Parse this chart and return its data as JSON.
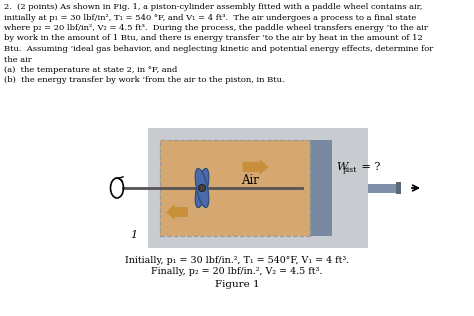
{
  "text_lines": [
    "2.  (2 points) As shown in Fig. 1, a piston-cylinder assembly fitted with a paddle wheel contains air,",
    "initially at p₁ = 30 lbf/in², T₁ = 540 °F, and V₁ = 4 ft³.  The air undergoes a process to a final state",
    "where p₂ = 20 lbf/in², V₂ = 4.5 ft³.  During the process, the paddle wheel transfers energy ’to the air",
    "by work in the amount of 1 Btu, and there is energy transfer ’to the air by heat in the amount of 12",
    "Btu.  Assuming ’ideal gas behavior, and neglecting kinetic and potential energy effects, determine for",
    "the air",
    "(a)  the temperature at state 2, in °F, and",
    "(b)  the energy transfer by work ’from the air to the piston, in Btu."
  ],
  "caption_line1": "Initially, p₁ = 30 lbf/in.², T₁ = 540°F, V₁ = 4 ft³.",
  "caption_line2": "Finally, p₂ = 20 lbf/in.², V₂ = 4.5 ft³.",
  "figure_label": "Figure 1",
  "label_1": "1",
  "air_label": "Air",
  "wpist_label": "W",
  "wpist_sub": "pist",
  "wpist_eq": " = ?",
  "outer_frame_color": "#8898a8",
  "inner_fill_color": "#d4a870",
  "piston_color": "#7888a0",
  "rod_color": "#8090a8",
  "paddle_blade_color": "#4a6aaa",
  "paddle_edge_color": "#2a4a7a",
  "shaft_color": "#555555",
  "arrow_orange": "#c8903a",
  "dashed_color": "#999999",
  "bg_gray": "#c8ccd0"
}
